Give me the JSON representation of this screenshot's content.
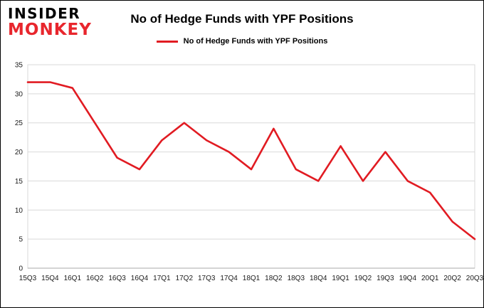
{
  "logo": {
    "line1": "INSIDER",
    "line2": "MONKEY"
  },
  "header": {
    "title": "No of Hedge Funds with YPF Positions"
  },
  "legend": {
    "label": "No of Hedge Funds with YPF Positions",
    "color": "#e11b22"
  },
  "chart_data": {
    "type": "line",
    "title": "No of Hedge Funds with YPF Positions",
    "series_name": "No of Hedge Funds with YPF Positions",
    "categories": [
      "15Q3",
      "15Q4",
      "16Q1",
      "16Q2",
      "16Q3",
      "16Q4",
      "17Q1",
      "17Q2",
      "17Q3",
      "17Q4",
      "18Q1",
      "18Q2",
      "18Q3",
      "18Q4",
      "19Q1",
      "19Q2",
      "19Q3",
      "19Q4",
      "20Q1",
      "20Q2",
      "20Q3"
    ],
    "values": [
      32,
      32,
      31,
      25,
      19,
      17,
      22,
      25,
      22,
      20,
      17,
      24,
      17,
      15,
      21,
      15,
      20,
      15,
      13,
      8,
      5
    ],
    "xlabel": "",
    "ylabel": "",
    "ylim": [
      0,
      35
    ],
    "ytick_step": 5,
    "grid": true,
    "legend_position": "top",
    "line_color": "#e11b22",
    "grid_color": "#d9d9d9",
    "axis_color": "#a8a8a8"
  }
}
